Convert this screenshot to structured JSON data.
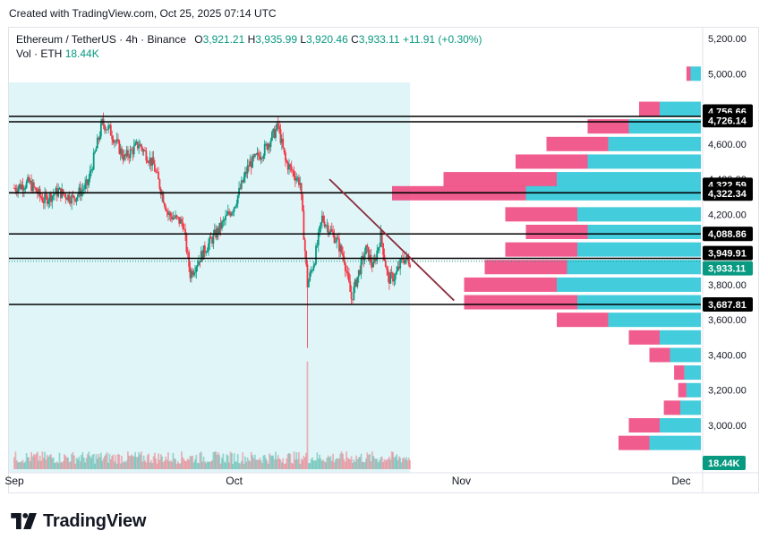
{
  "header": {
    "created_note": "Created with TradingView.com, Oct 25, 2025 07:14 UTC"
  },
  "legend": {
    "symbol": "Ethereum / TetherUS · 4h · Binance",
    "open_label": "O",
    "open": "3,921.21",
    "high_label": "H",
    "high": "3,935.99",
    "low_label": "L",
    "low": "3,920.46",
    "close_label": "C",
    "close": "3,933.11",
    "change": "+11.91 (+0.30%)",
    "vol_label": "Vol · ETH",
    "vol_value": "18.44K"
  },
  "brand": {
    "name": "TradingView"
  },
  "colors": {
    "up": "#089981",
    "down": "#f23645",
    "line": "#000000",
    "trend": "#8b2c3c",
    "highlight": "#e0f5f8",
    "vp_up": "#22c3d6",
    "vp_down": "#ef3f7a"
  },
  "chart_data": {
    "type": "candlestick",
    "symbol": "ETHUSDT",
    "timeframe": "4h",
    "y_axis": {
      "min": 2850,
      "max": 5300,
      "ticks": [
        5200,
        5000,
        4800,
        4600,
        4400,
        4200,
        4000,
        3800,
        3600,
        3400,
        3200,
        3000
      ],
      "tick_labels": [
        "5,200.00",
        "5,000.00",
        "4,800.00",
        "4,600.00",
        "4,400.00",
        "4,200.00",
        "4,000.00",
        "3,800.00",
        "3,600.00",
        "3,400.00",
        "3,200.00",
        "3,000.00"
      ]
    },
    "x_axis": {
      "start": "2025-09-01",
      "end": "2025-12-01",
      "labels": [
        {
          "date": "2025-09-01",
          "label": "Sep"
        },
        {
          "date": "2025-10-01",
          "label": "Oct"
        },
        {
          "date": "2025-11-01",
          "label": "Nov"
        },
        {
          "date": "2025-12-01",
          "label": "Dec"
        }
      ]
    },
    "highlight_range": {
      "start": "2025-09-01",
      "end": "2025-10-25"
    },
    "horizontal_levels": [
      {
        "value": 4756.66,
        "label": "4,756.66"
      },
      {
        "value": 4726.14,
        "label": "4,726.14"
      },
      {
        "value": 4322.59,
        "label": "4,322.59"
      },
      {
        "value": 4322.34,
        "label": "4,322.34"
      },
      {
        "value": 4088.86,
        "label": "4,088.86"
      },
      {
        "value": 3949.91,
        "label": "3,949.91"
      },
      {
        "value": 3687.81,
        "label": "3,687.81"
      }
    ],
    "last_price": {
      "value": 3933.11,
      "label": "3,933.11"
    },
    "volume_last": {
      "label": "18.44K"
    },
    "trendline": {
      "from": {
        "date": "2025-10-14",
        "price": 4400
      },
      "to": {
        "date": "2025-10-31",
        "price": 3710
      }
    },
    "close_series": {
      "points": [
        [
          "2025-09-01",
          4350
        ],
        [
          "2025-09-03",
          4380
        ],
        [
          "2025-09-05",
          4280
        ],
        [
          "2025-09-07",
          4330
        ],
        [
          "2025-09-09",
          4290
        ],
        [
          "2025-09-11",
          4370
        ],
        [
          "2025-09-13",
          4720
        ],
        [
          "2025-09-14",
          4680
        ],
        [
          "2025-09-16",
          4520
        ],
        [
          "2025-09-18",
          4600
        ],
        [
          "2025-09-20",
          4480
        ],
        [
          "2025-09-22",
          4200
        ],
        [
          "2025-09-24",
          4150
        ],
        [
          "2025-09-25",
          3860
        ],
        [
          "2025-09-27",
          4000
        ],
        [
          "2025-09-29",
          4120
        ],
        [
          "2025-10-01",
          4250
        ],
        [
          "2025-10-03",
          4480
        ],
        [
          "2025-10-05",
          4560
        ],
        [
          "2025-10-07",
          4700
        ],
        [
          "2025-10-08",
          4500
        ],
        [
          "2025-10-10",
          4380
        ],
        [
          "2025-10-11",
          3800
        ],
        [
          "2025-10-12",
          3950
        ],
        [
          "2025-10-13",
          4180
        ],
        [
          "2025-10-15",
          4050
        ],
        [
          "2025-10-16",
          3950
        ],
        [
          "2025-10-17",
          3720
        ],
        [
          "2025-10-18",
          3870
        ],
        [
          "2025-10-19",
          4000
        ],
        [
          "2025-10-20",
          3900
        ],
        [
          "2025-10-21",
          4080
        ],
        [
          "2025-10-22",
          3830
        ],
        [
          "2025-10-23",
          3850
        ],
        [
          "2025-10-24",
          3950
        ],
        [
          "2025-10-25",
          3933
        ]
      ],
      "extremes": {
        "high": {
          "date": "2025-10-07",
          "price": 4756
        },
        "wick_low": {
          "date": "2025-10-11",
          "price": 3440
        }
      }
    },
    "volume_profile": [
      {
        "price": 5000,
        "up": 0.05,
        "down": 0.02
      },
      {
        "price": 4800,
        "up": 0.2,
        "down": 0.1
      },
      {
        "price": 4700,
        "up": 0.35,
        "down": 0.2
      },
      {
        "price": 4600,
        "up": 0.45,
        "down": 0.3
      },
      {
        "price": 4500,
        "up": 0.55,
        "down": 0.35
      },
      {
        "price": 4400,
        "up": 0.7,
        "down": 0.55
      },
      {
        "price": 4320,
        "up": 0.85,
        "down": 0.65
      },
      {
        "price": 4200,
        "up": 0.6,
        "down": 0.35
      },
      {
        "price": 4100,
        "up": 0.55,
        "down": 0.3
      },
      {
        "price": 4000,
        "up": 0.6,
        "down": 0.35
      },
      {
        "price": 3900,
        "up": 0.65,
        "down": 0.4
      },
      {
        "price": 3800,
        "up": 0.7,
        "down": 0.45
      },
      {
        "price": 3700,
        "up": 0.6,
        "down": 0.55
      },
      {
        "price": 3600,
        "up": 0.45,
        "down": 0.25
      },
      {
        "price": 3500,
        "up": 0.2,
        "down": 0.15
      },
      {
        "price": 3400,
        "up": 0.15,
        "down": 0.1
      },
      {
        "price": 3300,
        "up": 0.08,
        "down": 0.05
      },
      {
        "price": 3200,
        "up": 0.07,
        "down": 0.04
      },
      {
        "price": 3100,
        "up": 0.1,
        "down": 0.08
      },
      {
        "price": 3000,
        "up": 0.2,
        "down": 0.15
      },
      {
        "price": 2900,
        "up": 0.25,
        "down": 0.15
      }
    ]
  }
}
